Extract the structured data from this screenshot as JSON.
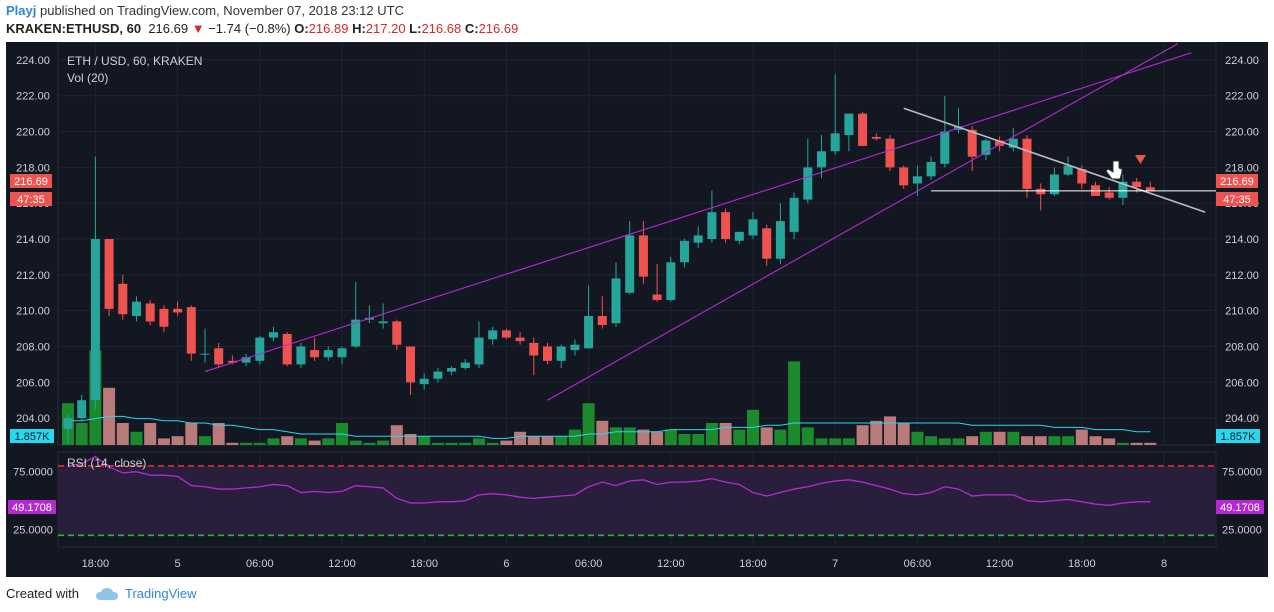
{
  "header": {
    "author": "Playj",
    "published_text": "published on TradingView.com, November 07, 2018 23:12 UTC",
    "symbol": "KRAKEN:ETHUSD, 60",
    "last": "216.69",
    "arrow": "▼",
    "change": "−1.74 (−0.8%)",
    "o_label": "O:",
    "o_val": "216.89",
    "h_label": "H:",
    "h_val": "217.20",
    "l_label": "L:",
    "l_val": "216.68",
    "c_label": "C:",
    "c_val": "216.69"
  },
  "footer": {
    "created_with": "Created with",
    "brand": "TradingView",
    "logo_icon": "tradingview-cloud-icon"
  },
  "colors": {
    "background": "#131722",
    "up": "#26a69a",
    "down": "#ef5350",
    "vol_up": "#1b8a2d",
    "vol_down": "#b97a7a",
    "trendline": "#b42ad2",
    "rsi": "#b42ad2",
    "rsi_band": "#2a1e3d",
    "rsi_upper": "#ef3030",
    "rsi_lower": "#23c623",
    "vol_ma": "#27d8ee",
    "grid": "#1f2433",
    "axis_text": "#cdd0d6"
  },
  "chart_data": {
    "type": "candlestick",
    "title": "ETH / USD, 60, KRAKEN",
    "volume_label": "Vol (20)",
    "volume_badge": "1.857K",
    "price_badge": "216.69",
    "countdown_badge": "47:35",
    "ylim": [
      202.5,
      225.0
    ],
    "yticks": [
      "224.00",
      "222.00",
      "220.00",
      "218.00",
      "216.00",
      "214.00",
      "212.00",
      "210.00",
      "208.00",
      "206.00",
      "204.00"
    ],
    "x_ticks": [
      {
        "i": 2,
        "label": "18:00"
      },
      {
        "i": 8,
        "label": "5"
      },
      {
        "i": 14,
        "label": "06:00"
      },
      {
        "i": 20,
        "label": "12:00"
      },
      {
        "i": 26,
        "label": "18:00"
      },
      {
        "i": 32,
        "label": "6"
      },
      {
        "i": 38,
        "label": "06:00"
      },
      {
        "i": 44,
        "label": "12:00"
      },
      {
        "i": 50,
        "label": "18:00"
      },
      {
        "i": 56,
        "label": "7"
      },
      {
        "i": 62,
        "label": "06:00"
      },
      {
        "i": 68,
        "label": "12:00"
      },
      {
        "i": 74,
        "label": "18:00"
      },
      {
        "i": 80,
        "label": "8"
      }
    ],
    "candles": [
      {
        "o": 203.4,
        "h": 204.2,
        "l": 202.6,
        "c": 204.0
      },
      {
        "o": 204.0,
        "h": 205.3,
        "l": 203.8,
        "c": 205.0
      },
      {
        "o": 205.0,
        "h": 218.6,
        "l": 204.5,
        "c": 214.0
      },
      {
        "o": 214.0,
        "h": 214.0,
        "l": 209.7,
        "c": 210.1
      },
      {
        "o": 211.5,
        "h": 212.0,
        "l": 209.5,
        "c": 209.8
      },
      {
        "o": 209.7,
        "h": 210.8,
        "l": 209.4,
        "c": 210.5
      },
      {
        "o": 210.4,
        "h": 210.6,
        "l": 209.2,
        "c": 209.4
      },
      {
        "o": 210.1,
        "h": 210.3,
        "l": 208.8,
        "c": 209.1
      },
      {
        "o": 210.1,
        "h": 210.5,
        "l": 209.7,
        "c": 209.9
      },
      {
        "o": 210.2,
        "h": 210.3,
        "l": 207.2,
        "c": 207.6
      },
      {
        "o": 207.6,
        "h": 209.0,
        "l": 207.1,
        "c": 207.6
      },
      {
        "o": 207.9,
        "h": 208.2,
        "l": 206.8,
        "c": 207.0
      },
      {
        "o": 207.2,
        "h": 207.5,
        "l": 207.0,
        "c": 207.1
      },
      {
        "o": 207.1,
        "h": 207.6,
        "l": 206.9,
        "c": 207.4
      },
      {
        "o": 207.2,
        "h": 208.6,
        "l": 207.0,
        "c": 208.5
      },
      {
        "o": 208.5,
        "h": 209.1,
        "l": 208.3,
        "c": 208.8
      },
      {
        "o": 208.7,
        "h": 208.8,
        "l": 206.9,
        "c": 207.0
      },
      {
        "o": 207.0,
        "h": 208.2,
        "l": 206.8,
        "c": 208.0
      },
      {
        "o": 207.8,
        "h": 208.5,
        "l": 207.2,
        "c": 207.4
      },
      {
        "o": 207.4,
        "h": 208.0,
        "l": 207.2,
        "c": 207.8
      },
      {
        "o": 207.4,
        "h": 208.0,
        "l": 207.0,
        "c": 207.9
      },
      {
        "o": 208.0,
        "h": 211.6,
        "l": 207.9,
        "c": 209.5
      },
      {
        "o": 209.5,
        "h": 210.3,
        "l": 209.3,
        "c": 209.6
      },
      {
        "o": 209.3,
        "h": 210.4,
        "l": 209.0,
        "c": 209.4
      },
      {
        "o": 209.4,
        "h": 209.5,
        "l": 207.8,
        "c": 208.1
      },
      {
        "o": 208.0,
        "h": 208.0,
        "l": 205.3,
        "c": 206.0
      },
      {
        "o": 205.9,
        "h": 206.5,
        "l": 205.6,
        "c": 206.2
      },
      {
        "o": 206.2,
        "h": 206.8,
        "l": 206.0,
        "c": 206.6
      },
      {
        "o": 206.6,
        "h": 206.9,
        "l": 206.4,
        "c": 206.8
      },
      {
        "o": 206.8,
        "h": 207.3,
        "l": 206.7,
        "c": 207.1
      },
      {
        "o": 207.0,
        "h": 209.4,
        "l": 206.8,
        "c": 208.5
      },
      {
        "o": 208.4,
        "h": 209.1,
        "l": 208.1,
        "c": 208.9
      },
      {
        "o": 208.9,
        "h": 209.0,
        "l": 208.4,
        "c": 208.5
      },
      {
        "o": 208.5,
        "h": 208.8,
        "l": 208.1,
        "c": 208.3
      },
      {
        "o": 208.2,
        "h": 208.5,
        "l": 206.4,
        "c": 207.5
      },
      {
        "o": 208.0,
        "h": 208.2,
        "l": 207.0,
        "c": 207.2
      },
      {
        "o": 207.2,
        "h": 208.1,
        "l": 206.8,
        "c": 208.0
      },
      {
        "o": 207.8,
        "h": 208.4,
        "l": 207.5,
        "c": 208.1
      },
      {
        "o": 207.9,
        "h": 211.4,
        "l": 207.9,
        "c": 209.7
      },
      {
        "o": 209.7,
        "h": 210.8,
        "l": 209.0,
        "c": 209.2
      },
      {
        "o": 209.3,
        "h": 212.7,
        "l": 209.1,
        "c": 211.8
      },
      {
        "o": 211.0,
        "h": 215.0,
        "l": 210.9,
        "c": 214.2
      },
      {
        "o": 214.2,
        "h": 215.0,
        "l": 211.5,
        "c": 211.9
      },
      {
        "o": 210.9,
        "h": 212.6,
        "l": 210.5,
        "c": 210.6
      },
      {
        "o": 210.6,
        "h": 213.0,
        "l": 210.5,
        "c": 212.7
      },
      {
        "o": 212.7,
        "h": 214.0,
        "l": 212.4,
        "c": 213.9
      },
      {
        "o": 213.8,
        "h": 214.7,
        "l": 213.5,
        "c": 214.2
      },
      {
        "o": 214.0,
        "h": 216.7,
        "l": 213.8,
        "c": 215.5
      },
      {
        "o": 215.5,
        "h": 215.7,
        "l": 213.8,
        "c": 214.0
      },
      {
        "o": 213.9,
        "h": 214.4,
        "l": 213.7,
        "c": 214.4
      },
      {
        "o": 214.2,
        "h": 215.5,
        "l": 214.0,
        "c": 215.1
      },
      {
        "o": 214.6,
        "h": 214.8,
        "l": 212.5,
        "c": 212.9
      },
      {
        "o": 212.9,
        "h": 216.0,
        "l": 212.6,
        "c": 215.0
      },
      {
        "o": 214.4,
        "h": 216.6,
        "l": 214.0,
        "c": 216.3
      },
      {
        "o": 216.2,
        "h": 219.6,
        "l": 216.0,
        "c": 218.0
      },
      {
        "o": 218.0,
        "h": 219.8,
        "l": 217.4,
        "c": 218.9
      },
      {
        "o": 218.9,
        "h": 223.2,
        "l": 218.7,
        "c": 219.9
      },
      {
        "o": 219.8,
        "h": 221.0,
        "l": 218.9,
        "c": 221.0
      },
      {
        "o": 221.0,
        "h": 221.1,
        "l": 219.2,
        "c": 219.2
      },
      {
        "o": 219.7,
        "h": 219.9,
        "l": 219.5,
        "c": 219.6
      },
      {
        "o": 219.6,
        "h": 219.8,
        "l": 217.8,
        "c": 218.0
      },
      {
        "o": 218.0,
        "h": 218.1,
        "l": 216.8,
        "c": 217.0
      },
      {
        "o": 217.1,
        "h": 218.1,
        "l": 216.4,
        "c": 217.5
      },
      {
        "o": 217.5,
        "h": 218.6,
        "l": 217.3,
        "c": 218.3
      },
      {
        "o": 218.2,
        "h": 222.0,
        "l": 218.0,
        "c": 220.0
      },
      {
        "o": 220.1,
        "h": 221.3,
        "l": 219.9,
        "c": 220.3
      },
      {
        "o": 220.1,
        "h": 220.3,
        "l": 217.8,
        "c": 218.6
      },
      {
        "o": 218.7,
        "h": 219.6,
        "l": 218.4,
        "c": 219.5
      },
      {
        "o": 219.5,
        "h": 219.7,
        "l": 218.9,
        "c": 219.2
      },
      {
        "o": 219.1,
        "h": 220.2,
        "l": 218.9,
        "c": 219.6
      },
      {
        "o": 219.6,
        "h": 219.8,
        "l": 216.3,
        "c": 216.8
      },
      {
        "o": 216.8,
        "h": 217.1,
        "l": 215.6,
        "c": 216.5
      },
      {
        "o": 216.5,
        "h": 218.0,
        "l": 216.4,
        "c": 217.6
      },
      {
        "o": 217.6,
        "h": 218.6,
        "l": 217.5,
        "c": 218.1
      },
      {
        "o": 217.9,
        "h": 218.1,
        "l": 216.8,
        "c": 217.1
      },
      {
        "o": 217.0,
        "h": 217.2,
        "l": 216.4,
        "c": 216.4
      },
      {
        "o": 216.6,
        "h": 216.9,
        "l": 216.2,
        "c": 216.3
      },
      {
        "o": 216.3,
        "h": 217.6,
        "l": 215.9,
        "c": 217.2
      },
      {
        "o": 217.2,
        "h": 217.4,
        "l": 216.6,
        "c": 216.9
      },
      {
        "o": 216.89,
        "h": 217.2,
        "l": 216.68,
        "c": 216.69
      }
    ],
    "volumes": [
      1.9,
      1.0,
      4.3,
      2.6,
      1.0,
      0.6,
      1.0,
      0.3,
      0.4,
      1.0,
      0.4,
      1.0,
      0.1,
      0.1,
      0.1,
      0.3,
      0.4,
      0.3,
      0.2,
      0.3,
      1.0,
      0.2,
      0.1,
      0.2,
      0.9,
      0.5,
      0.4,
      0.1,
      0.1,
      0.1,
      0.3,
      0.1,
      0.2,
      0.6,
      0.4,
      0.4,
      0.4,
      0.7,
      1.9,
      1.1,
      0.8,
      0.8,
      0.7,
      0.6,
      0.7,
      0.5,
      0.5,
      1.0,
      1.0,
      0.7,
      1.6,
      0.8,
      0.7,
      3.8,
      0.8,
      0.3,
      0.3,
      0.3,
      0.9,
      1.1,
      1.3,
      1.0,
      0.6,
      0.4,
      0.3,
      0.3,
      0.4,
      0.6,
      0.6,
      0.6,
      0.4,
      0.4,
      0.4,
      0.4,
      0.7,
      0.4,
      0.3,
      0.1,
      0.1,
      0.1
    ],
    "volume_ma": [
      1.1,
      1.1,
      1.2,
      1.3,
      1.3,
      1.2,
      1.2,
      1.1,
      1.1,
      1.0,
      1.0,
      0.9,
      0.9,
      0.8,
      0.7,
      0.7,
      0.6,
      0.5,
      0.5,
      0.5,
      0.5,
      0.4,
      0.4,
      0.4,
      0.4,
      0.4,
      0.4,
      0.4,
      0.4,
      0.4,
      0.4,
      0.3,
      0.3,
      0.4,
      0.4,
      0.4,
      0.4,
      0.4,
      0.5,
      0.5,
      0.6,
      0.6,
      0.6,
      0.6,
      0.7,
      0.7,
      0.7,
      0.7,
      0.8,
      0.8,
      0.8,
      0.9,
      0.9,
      1.0,
      1.0,
      1.0,
      1.0,
      1.0,
      1.0,
      1.0,
      1.0,
      1.0,
      1.0,
      1.0,
      1.0,
      1.0,
      0.9,
      0.9,
      0.9,
      0.9,
      0.9,
      0.9,
      0.8,
      0.8,
      0.8,
      0.7,
      0.7,
      0.7,
      0.6,
      0.6
    ],
    "volume_max": 5.0,
    "rsi_label": "RSI (14, close)",
    "rsi_value_badge": "49.1708",
    "rsi_yticks": [
      "75.0000",
      "25.0000"
    ],
    "rsi_upper": 80,
    "rsi_lower": 20,
    "rsi_ylim": [
      10,
      92
    ],
    "rsi": [
      80,
      82,
      88,
      79,
      74,
      75,
      72,
      72,
      71,
      63,
      62,
      60,
      60,
      61,
      62,
      64,
      63,
      57,
      58,
      57,
      58,
      63,
      62,
      61,
      52,
      48,
      48,
      49,
      49,
      50,
      55,
      56,
      55,
      53,
      52,
      53,
      54,
      55,
      62,
      66,
      63,
      67,
      68,
      64,
      66,
      66,
      67,
      69,
      66,
      64,
      57,
      54,
      57,
      60,
      62,
      65,
      67,
      68,
      66,
      63,
      60,
      56,
      55,
      57,
      62,
      60,
      54,
      55,
      55,
      55,
      50,
      49,
      50,
      51,
      49,
      47,
      46,
      48,
      49,
      49
    ],
    "hline": {
      "price": 216.69,
      "from_index": 63
    },
    "drawn_lines": [
      {
        "i1": 10,
        "p1": 206.6,
        "i2": 82,
        "p2": 224.4
      },
      {
        "i1": 35,
        "p1": 205.0,
        "i2": 81,
        "p2": 224.9
      },
      {
        "i1": 61,
        "p1": 221.3,
        "i2": 83,
        "p2": 215.5
      }
    ]
  }
}
